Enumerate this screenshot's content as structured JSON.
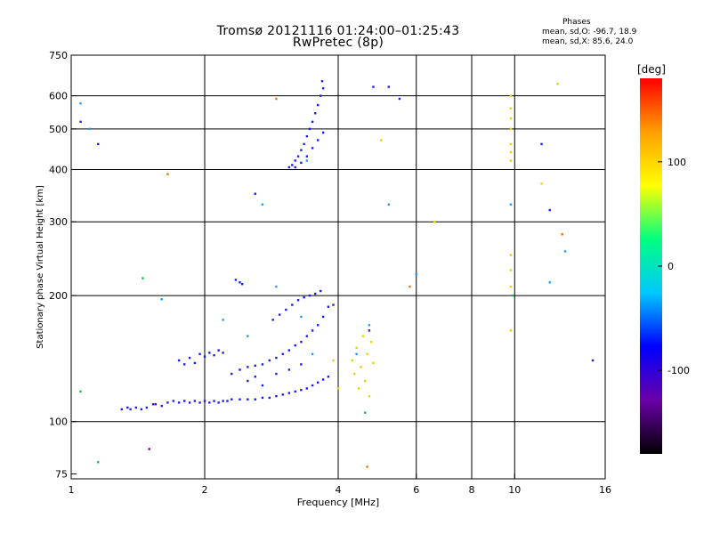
{
  "header": {
    "title_line1": "Tromsø 20121116 01:24:00–01:25:43",
    "title_line2": "RwPretec (8p)"
  },
  "stats": {
    "heading": "Phases",
    "line_o": "mean, sd,O: -96.7, 18.9",
    "line_x": "mean, sd,X:  85.6, 24.0"
  },
  "chart_data": {
    "type": "scatter",
    "xlabel": "Frequency [MHz]",
    "ylabel": "Stationary phase Virtual Height [km]",
    "x_scale": "log",
    "y_scale": "log",
    "xlim": [
      1,
      16
    ],
    "ylim": [
      73,
      750
    ],
    "x_ticks": [
      1,
      2,
      4,
      6,
      8,
      10,
      16
    ],
    "x_tick_labels": [
      "1",
      "2",
      "4",
      "6",
      "8",
      "10",
      "16"
    ],
    "x_grid": [
      2,
      4,
      6,
      8,
      10
    ],
    "y_ticks": [
      75,
      100,
      200,
      300,
      400,
      500,
      600,
      750
    ],
    "y_tick_labels": [
      "75",
      "100",
      "200",
      "300",
      "400",
      "500",
      "600",
      "750"
    ],
    "y_grid": [
      100,
      200,
      300,
      400,
      500,
      600
    ],
    "grid": true,
    "colorbar": {
      "label": "[deg]",
      "min": -180,
      "max": 180,
      "ticks": [
        100,
        0,
        -100
      ],
      "tick_labels": [
        "100",
        "0",
        "-100"
      ],
      "colors": [
        "#000000",
        "#6a00a8",
        "#0000ff",
        "#00c8ff",
        "#00ff80",
        "#ffff00",
        "#ffa000",
        "#ff0000"
      ]
    },
    "series": [
      {
        "color": "#1a1aff",
        "points": [
          [
            1.3,
            107
          ],
          [
            1.34,
            108
          ],
          [
            1.36,
            107
          ],
          [
            1.4,
            108
          ],
          [
            1.44,
            107
          ],
          [
            1.48,
            108
          ],
          [
            1.53,
            110
          ],
          [
            1.6,
            109
          ],
          [
            1.65,
            111
          ],
          [
            1.7,
            112
          ],
          [
            1.75,
            111
          ],
          [
            1.8,
            112
          ],
          [
            1.85,
            111
          ],
          [
            1.9,
            112
          ],
          [
            1.95,
            111
          ],
          [
            2.0,
            112
          ],
          [
            2.05,
            111
          ],
          [
            2.1,
            112
          ],
          [
            2.15,
            111
          ],
          [
            2.2,
            112
          ],
          [
            2.25,
            112
          ],
          [
            2.3,
            113
          ],
          [
            2.4,
            113
          ],
          [
            2.5,
            113
          ],
          [
            2.6,
            113
          ],
          [
            2.7,
            114
          ],
          [
            2.8,
            114
          ],
          [
            2.9,
            115
          ],
          [
            3.0,
            116
          ],
          [
            3.1,
            117
          ],
          [
            3.2,
            118
          ],
          [
            3.3,
            119
          ],
          [
            3.4,
            120
          ],
          [
            3.5,
            122
          ],
          [
            3.6,
            124
          ],
          [
            3.7,
            126
          ],
          [
            3.8,
            128
          ],
          [
            1.75,
            140
          ],
          [
            1.8,
            137
          ],
          [
            1.85,
            142
          ],
          [
            1.9,
            138
          ],
          [
            1.95,
            145
          ],
          [
            2.0,
            143
          ],
          [
            2.05,
            146
          ],
          [
            2.1,
            144
          ],
          [
            2.15,
            148
          ],
          [
            2.2,
            146
          ],
          [
            2.3,
            130
          ],
          [
            2.4,
            133
          ],
          [
            2.5,
            135
          ],
          [
            2.6,
            136
          ],
          [
            2.7,
            137
          ],
          [
            2.8,
            140
          ],
          [
            2.9,
            142
          ],
          [
            3.0,
            145
          ],
          [
            3.1,
            148
          ],
          [
            3.2,
            152
          ],
          [
            3.3,
            155
          ],
          [
            3.4,
            160
          ],
          [
            3.5,
            165
          ],
          [
            3.6,
            170
          ],
          [
            3.7,
            178
          ],
          [
            3.8,
            188
          ],
          [
            2.85,
            175
          ],
          [
            2.95,
            180
          ],
          [
            3.05,
            185
          ],
          [
            3.15,
            190
          ],
          [
            3.25,
            195
          ],
          [
            3.35,
            198
          ],
          [
            3.45,
            200
          ],
          [
            3.55,
            202
          ],
          [
            3.65,
            205
          ],
          [
            2.5,
            125
          ],
          [
            2.6,
            128
          ],
          [
            2.7,
            122
          ],
          [
            2.9,
            130
          ],
          [
            3.1,
            133
          ],
          [
            3.3,
            137
          ],
          [
            2.4,
            215
          ],
          [
            2.35,
            218
          ],
          [
            2.43,
            213
          ],
          [
            3.2,
            420
          ],
          [
            3.25,
            430
          ],
          [
            3.3,
            445
          ],
          [
            3.35,
            460
          ],
          [
            3.4,
            480
          ],
          [
            3.45,
            500
          ],
          [
            3.5,
            520
          ],
          [
            3.55,
            545
          ],
          [
            3.6,
            570
          ],
          [
            3.65,
            600
          ],
          [
            3.7,
            625
          ],
          [
            3.68,
            650
          ],
          [
            3.1,
            405
          ],
          [
            3.15,
            410
          ],
          [
            3.2,
            405
          ],
          [
            3.3,
            415
          ],
          [
            3.4,
            430
          ],
          [
            3.5,
            450
          ],
          [
            3.6,
            470
          ],
          [
            3.7,
            490
          ],
          [
            4.8,
            630
          ],
          [
            5.2,
            630
          ],
          [
            5.5,
            590
          ],
          [
            1.15,
            460
          ],
          [
            1.05,
            520
          ],
          [
            11.5,
            460
          ],
          [
            12.0,
            320
          ],
          [
            15.0,
            140
          ],
          [
            2.6,
            350
          ]
        ]
      },
      {
        "color": "#1c9cff",
        "points": [
          [
            1.05,
            575
          ],
          [
            1.1,
            500
          ],
          [
            1.6,
            196
          ],
          [
            2.2,
            175
          ],
          [
            2.5,
            160
          ],
          [
            2.9,
            210
          ],
          [
            3.5,
            145
          ],
          [
            3.3,
            178
          ],
          [
            2.7,
            330
          ],
          [
            3.4,
            420
          ],
          [
            4.7,
            170
          ],
          [
            5.2,
            330
          ],
          [
            6.0,
            225
          ],
          [
            9.8,
            330
          ],
          [
            13.0,
            255
          ],
          [
            4.4,
            145
          ],
          [
            12.0,
            215
          ]
        ]
      },
      {
        "color": "#e6d400",
        "points": [
          [
            4.3,
            140
          ],
          [
            4.35,
            130
          ],
          [
            4.4,
            150
          ],
          [
            4.45,
            120
          ],
          [
            4.5,
            135
          ],
          [
            4.55,
            160
          ],
          [
            4.6,
            125
          ],
          [
            4.65,
            145
          ],
          [
            4.7,
            115
          ],
          [
            4.75,
            155
          ],
          [
            4.8,
            138
          ],
          [
            9.8,
            420
          ],
          [
            9.8,
            440
          ],
          [
            9.8,
            460
          ],
          [
            9.8,
            500
          ],
          [
            9.8,
            530
          ],
          [
            9.8,
            560
          ],
          [
            9.8,
            600
          ],
          [
            9.8,
            250
          ],
          [
            9.8,
            230
          ],
          [
            9.8,
            210
          ],
          [
            9.8,
            165
          ],
          [
            5.0,
            470
          ],
          [
            6.6,
            300
          ],
          [
            11.5,
            370
          ],
          [
            12.5,
            640
          ],
          [
            4.0,
            120
          ],
          [
            3.9,
            140
          ]
        ]
      },
      {
        "color": "#f07000",
        "points": [
          [
            4.65,
            78
          ],
          [
            5.8,
            210
          ],
          [
            12.8,
            280
          ],
          [
            1.65,
            390
          ],
          [
            2.9,
            590
          ]
        ]
      },
      {
        "color": "#10c040",
        "points": [
          [
            1.15,
            80
          ],
          [
            1.05,
            118
          ],
          [
            1.45,
            220
          ],
          [
            4.6,
            105
          ],
          [
            9.9,
            200
          ]
        ]
      },
      {
        "color": "#7000a0",
        "points": [
          [
            1.5,
            86
          ],
          [
            3.9,
            190
          ],
          [
            4.7,
            165
          ],
          [
            1.55,
            110
          ]
        ]
      }
    ]
  }
}
